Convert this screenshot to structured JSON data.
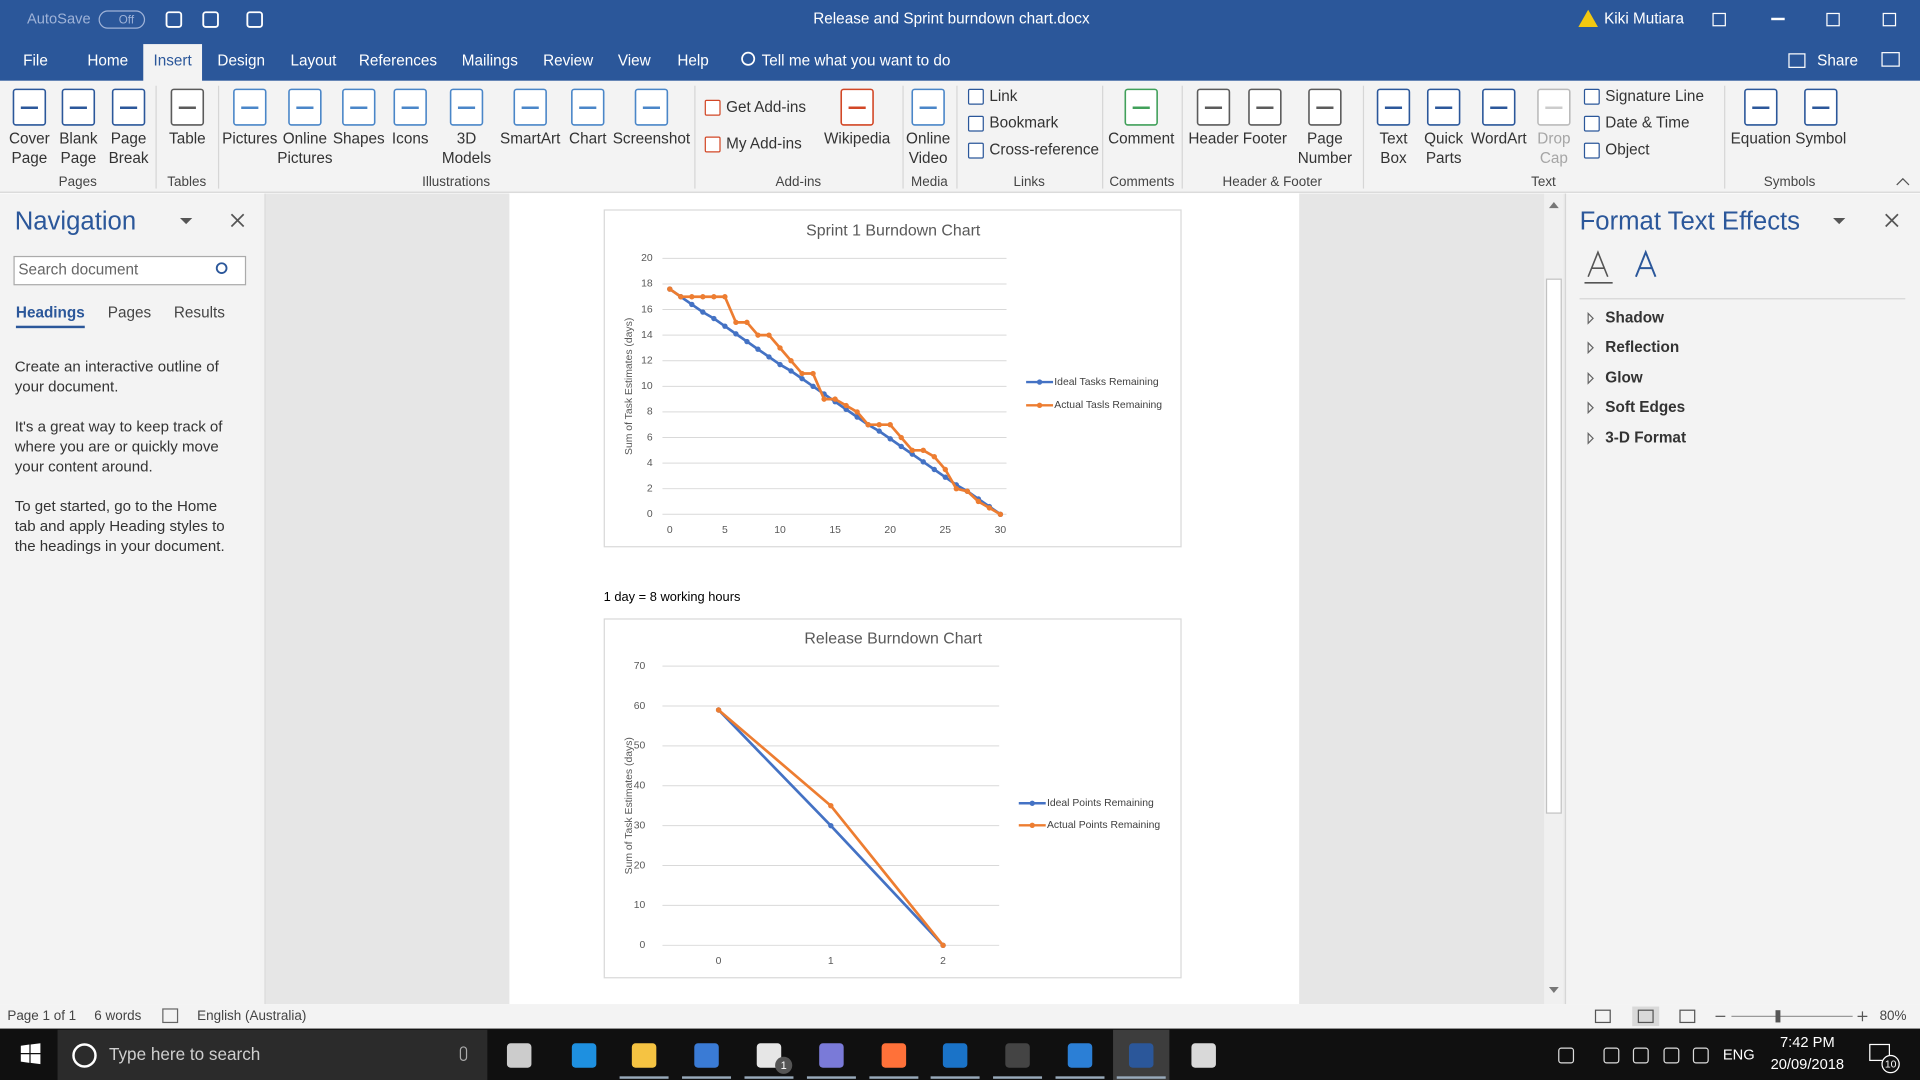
{
  "title_bar": {
    "autosave": "AutoSave",
    "autosave_state": "Off",
    "document_title": "Release and Sprint burndown chart.docx",
    "user": "Kiki Mutiara"
  },
  "tabs": [
    "File",
    "Home",
    "Insert",
    "Design",
    "Layout",
    "References",
    "Mailings",
    "Review",
    "View",
    "Help"
  ],
  "active_tab": 2,
  "tell_me": "Tell me what you want to do",
  "share": "Share",
  "ribbon_groups": [
    {
      "name": "Pages",
      "large": [
        "Cover Page",
        "Blank Page",
        "Page Break"
      ]
    },
    {
      "name": "Tables",
      "large": [
        "Table"
      ]
    },
    {
      "name": "Illustrations",
      "large": [
        "Pictures",
        "Online Pictures",
        "Shapes",
        "Icons",
        "3D Models",
        "SmartArt",
        "Chart",
        "Screenshot"
      ]
    },
    {
      "name": "Add-ins",
      "small": [
        "Get Add-ins",
        "My Add-ins"
      ],
      "large": [
        "Wikipedia"
      ]
    },
    {
      "name": "Media",
      "large": [
        "Online Video"
      ]
    },
    {
      "name": "Links",
      "small": [
        "Link",
        "Bookmark",
        "Cross-reference"
      ]
    },
    {
      "name": "Comments",
      "large": [
        "Comment"
      ]
    },
    {
      "name": "Header & Footer",
      "large": [
        "Header",
        "Footer",
        "Page Number"
      ]
    },
    {
      "name": "Text",
      "large": [
        "Text Box",
        "Quick Parts",
        "WordArt",
        "Drop Cap"
      ],
      "small": [
        "Signature Line",
        "Date & Time",
        "Object"
      ]
    },
    {
      "name": "Symbols",
      "large": [
        "Equation",
        "Symbol"
      ]
    }
  ],
  "navigation": {
    "title": "Navigation",
    "search_placeholder": "Search document",
    "tabs": [
      "Headings",
      "Pages",
      "Results"
    ],
    "paragraphs": [
      "Create an interactive outline of your document.",
      "It's a great way to keep track of where you are or quickly move your content around.",
      "To get started, go to the Home tab and apply Heading styles to the headings in your document."
    ]
  },
  "document": {
    "note": "1 day = 8 working hours",
    "charts": [
      {
        "type": "line",
        "title": "Sprint 1 Burndown Chart",
        "y_label": "Sum of Task Estimates (days)",
        "x": [
          0,
          1,
          2,
          3,
          4,
          5,
          6,
          7,
          8,
          9,
          10,
          11,
          12,
          13,
          14,
          15,
          16,
          17,
          18,
          19,
          20,
          21,
          22,
          23,
          24,
          25,
          26,
          27,
          28,
          29,
          30
        ],
        "xlim": [
          0,
          30
        ],
        "xticks": [
          0,
          5,
          10,
          15,
          20,
          25,
          30
        ],
        "ylim": [
          0,
          20
        ],
        "yticks": [
          0,
          2,
          4,
          6,
          8,
          10,
          12,
          14,
          16,
          18,
          20
        ],
        "grid": true,
        "series": [
          {
            "name": "Ideal Tasks Remaining",
            "color": "#4472c4",
            "values": [
              17.6,
              17.0,
              16.4,
              15.8,
              15.3,
              14.7,
              14.1,
              13.5,
              12.9,
              12.3,
              11.7,
              11.2,
              10.6,
              10.0,
              9.4,
              8.8,
              8.2,
              7.6,
              7.0,
              6.5,
              5.9,
              5.3,
              4.7,
              4.1,
              3.5,
              2.9,
              2.3,
              1.8,
              1.2,
              0.6,
              0
            ]
          },
          {
            "name": "Actual Tasls Remaining",
            "color": "#ed7d31",
            "values": [
              17.6,
              17,
              17,
              17,
              17,
              17,
              15,
              15,
              14,
              14,
              13,
              12,
              11,
              11,
              9,
              9,
              8.5,
              8,
              7,
              7,
              7,
              6,
              5,
              5,
              4.5,
              3.5,
              2,
              1.8,
              1,
              0.5,
              0
            ]
          }
        ]
      },
      {
        "type": "line",
        "title": "Release Burndown Chart",
        "y_label": "Sum of Task Estimates (days)",
        "categories": [
          "0",
          "1",
          "2"
        ],
        "ylim": [
          0,
          70
        ],
        "yticks": [
          0,
          10,
          20,
          30,
          40,
          50,
          60,
          70
        ],
        "grid": true,
        "series": [
          {
            "name": "Ideal Points Remaining",
            "color": "#4472c4",
            "values": [
              59,
              30,
              0
            ]
          },
          {
            "name": "Actual Points Remaining",
            "color": "#ed7d31",
            "values": [
              59,
              35,
              0
            ]
          }
        ]
      }
    ]
  },
  "format_panel": {
    "title": "Format Text Effects",
    "sections": [
      "Shadow",
      "Reflection",
      "Glow",
      "Soft Edges",
      "3-D Format"
    ]
  },
  "status_bar": {
    "page": "Page 1 of 1",
    "words": "6 words",
    "language": "English (Australia)",
    "zoom": "80%"
  },
  "taskbar": {
    "search": "Type here to search",
    "mail_badge": "1",
    "language": "ENG",
    "time": "7:42 PM",
    "date": "20/09/2018",
    "notifications": "10"
  }
}
